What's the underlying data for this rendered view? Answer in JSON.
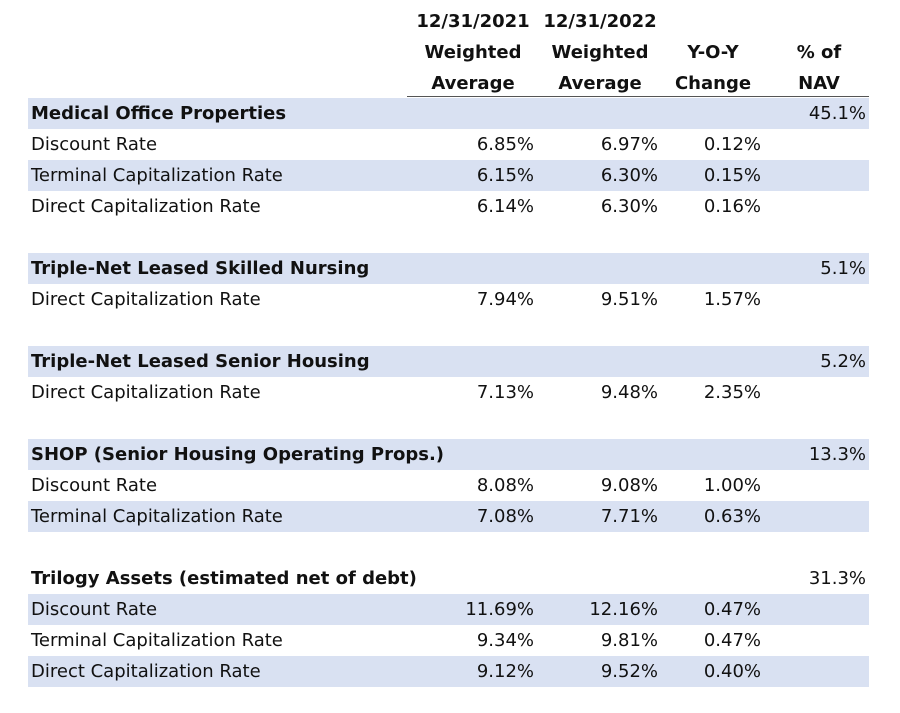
{
  "header": {
    "col_2021": [
      "12/31/2021",
      "Weighted",
      "Average"
    ],
    "col_2022": [
      "12/31/2022",
      "Weighted",
      "Average"
    ],
    "col_yoy": [
      "Y-O-Y",
      "Change"
    ],
    "col_nav": [
      "% of",
      "NAV"
    ]
  },
  "sections": [
    {
      "title": "Medical Office Properties",
      "nav": "45.1%",
      "rows": [
        {
          "label": "Discount Rate",
          "v2021": "6.85%",
          "v2022": "6.97%",
          "yoy": "0.12%"
        },
        {
          "label": "Terminal Capitalization Rate",
          "v2021": "6.15%",
          "v2022": "6.30%",
          "yoy": "0.15%"
        },
        {
          "label": "Direct Capitalization Rate",
          "v2021": "6.14%",
          "v2022": "6.30%",
          "yoy": "0.16%"
        }
      ]
    },
    {
      "title": "Triple-Net Leased Skilled Nursing",
      "nav": "5.1%",
      "rows": [
        {
          "label": "Direct Capitalization Rate",
          "v2021": "7.94%",
          "v2022": "9.51%",
          "yoy": "1.57%"
        }
      ]
    },
    {
      "title": "Triple-Net Leased Senior Housing",
      "nav": "5.2%",
      "rows": [
        {
          "label": "Direct Capitalization Rate",
          "v2021": "7.13%",
          "v2022": "9.48%",
          "yoy": "2.35%"
        }
      ]
    },
    {
      "title": "SHOP (Senior Housing Operating Props.)",
      "nav": "13.3%",
      "rows": [
        {
          "label": "Discount Rate",
          "v2021": "8.08%",
          "v2022": "9.08%",
          "yoy": "1.00%"
        },
        {
          "label": "Terminal Capitalization Rate",
          "v2021": "7.08%",
          "v2022": "7.71%",
          "yoy": "0.63%"
        }
      ]
    },
    {
      "title": "Trilogy Assets (estimated net of debt)",
      "nav": "31.3%",
      "rows": [
        {
          "label": "Discount Rate",
          "v2021": "11.69%",
          "v2022": "12.16%",
          "yoy": "0.47%"
        },
        {
          "label": "Terminal Capitalization Rate",
          "v2021": "9.34%",
          "v2022": "9.81%",
          "yoy": "0.47%"
        },
        {
          "label": "Direct Capitalization Rate",
          "v2021": "9.12%",
          "v2022": "9.52%",
          "yoy": "0.40%"
        }
      ]
    }
  ]
}
